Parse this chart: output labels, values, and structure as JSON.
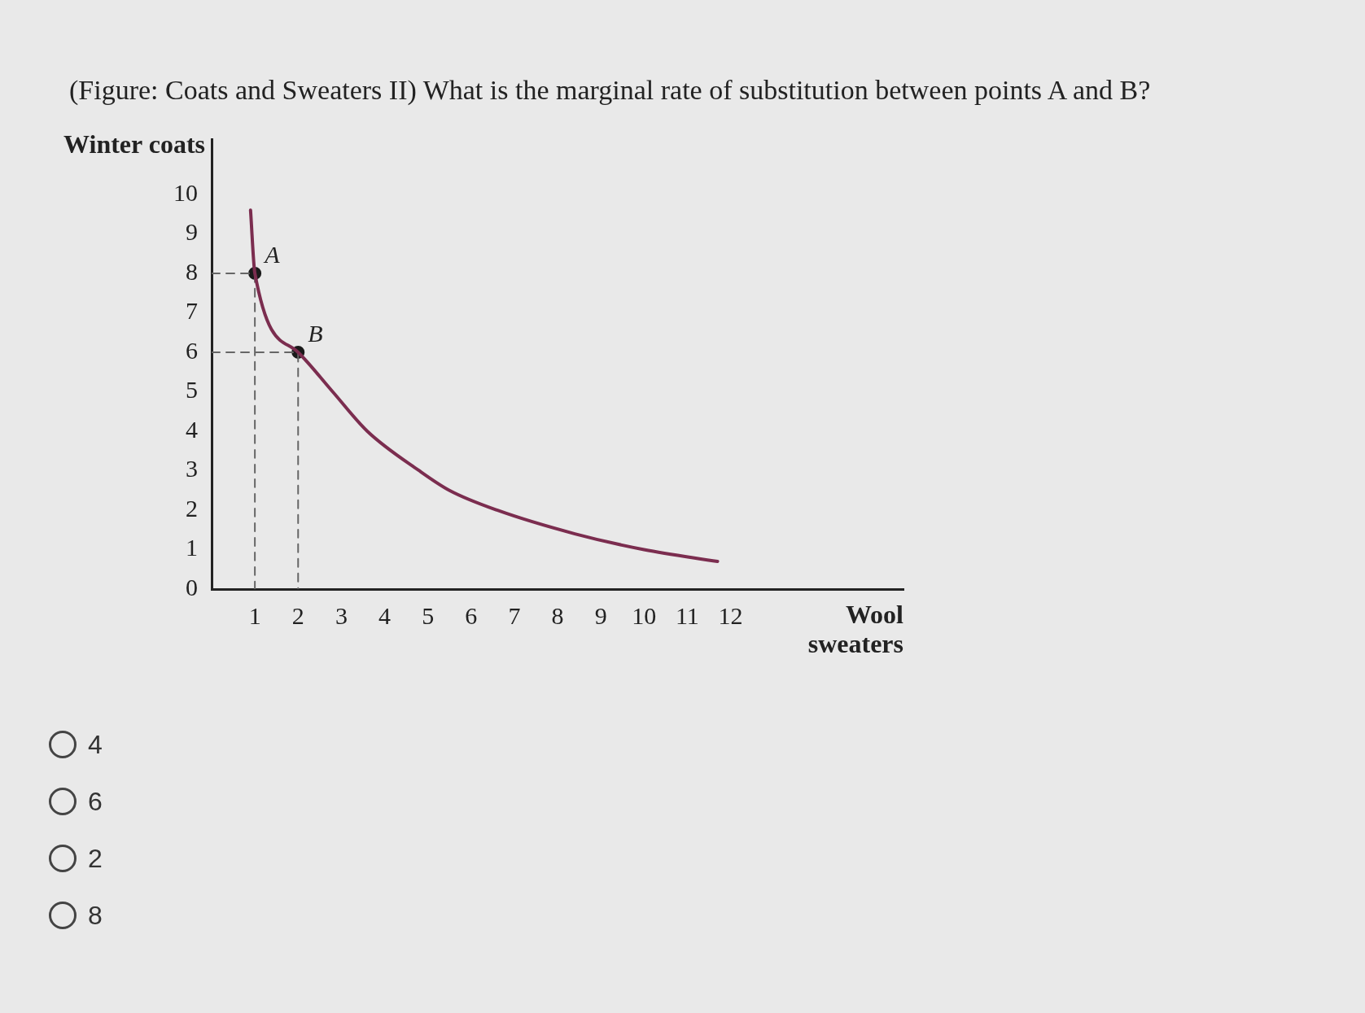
{
  "chart_data": {
    "type": "line",
    "title": "(Figure: Coats and Sweaters II) What is the marginal rate of substitution between points A and B?",
    "xlabel": "Wool sweaters",
    "ylabel": "Winter coats",
    "xlim": [
      0,
      16
    ],
    "ylim": [
      0,
      11.4
    ],
    "xticks": [
      1,
      2,
      3,
      4,
      5,
      6,
      7,
      8,
      9,
      10,
      11,
      12
    ],
    "yticks": [
      0,
      1,
      2,
      3,
      4,
      5,
      6,
      7,
      8,
      9,
      10
    ],
    "series": [
      {
        "color": "#7b2d4f",
        "marker": "none",
        "x": [
          0.9,
          1,
          2,
          2.8,
          3.6,
          4.8,
          5.5,
          6.6,
          8.4,
          10,
          11.7
        ],
        "values": [
          9.6,
          8,
          6,
          5,
          4,
          3,
          2.5,
          2,
          1.4,
          1,
          0.7
        ]
      },
      {
        "color": "#666666",
        "marker": "none",
        "line_style": "dashed",
        "x": [
          0,
          1,
          1
        ],
        "values": [
          8,
          8,
          0
        ]
      },
      {
        "color": "#666666",
        "marker": "none",
        "line_style": "dashed",
        "x": [
          0,
          2,
          2
        ],
        "values": [
          6,
          6,
          0
        ]
      },
      {
        "type": "scatter",
        "color": "#1a1a1a",
        "marker": "circle",
        "x": [
          1,
          2
        ],
        "values": [
          8,
          6
        ]
      }
    ],
    "annotations": [
      {
        "text": "A",
        "x": 1,
        "y": 8
      },
      {
        "text": "B",
        "x": 2,
        "y": 6
      },
      "4",
      "6",
      "2",
      "8"
    ]
  }
}
